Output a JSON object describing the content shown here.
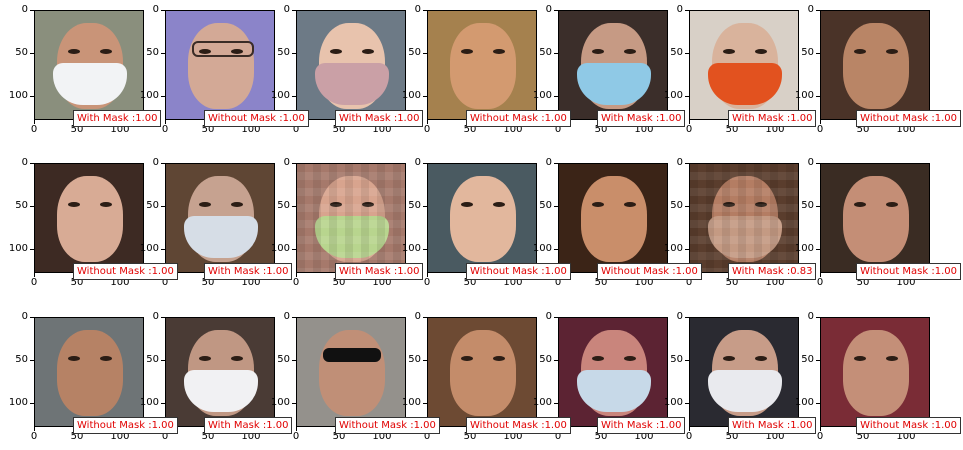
{
  "axis": {
    "y_ticks": [
      "0",
      "50",
      "100"
    ],
    "x_ticks": [
      "0",
      "50",
      "100"
    ]
  },
  "cells": [
    {
      "label": "With Mask :1.00",
      "skin": "#c99478",
      "bg": "#8a8f7d",
      "mask": "#f2f3f5",
      "kind": "mask"
    },
    {
      "label": "Without Mask :1.00",
      "skin": "#d3a996",
      "bg": "#8b84c9",
      "mask": "",
      "kind": "glasses-light"
    },
    {
      "label": "With Mask :1.00",
      "skin": "#e8c3ad",
      "bg": "#6d7a86",
      "mask": "#caa0a6",
      "kind": "mask"
    },
    {
      "label": "Without Mask :1.00",
      "skin": "#d39a70",
      "bg": "#a5814e",
      "mask": "",
      "kind": "face"
    },
    {
      "label": "With Mask :1.00",
      "skin": "#c69a84",
      "bg": "#3b2e2a",
      "mask": "#8fc9e6",
      "kind": "mask"
    },
    {
      "label": "With Mask :1.00",
      "skin": "#d9b39c",
      "bg": "#d8d0c7",
      "mask": "#e2521f",
      "kind": "mask"
    },
    {
      "label": "Without Mask :1.00",
      "skin": "#b98566",
      "bg": "#4a3328",
      "mask": "",
      "kind": "face"
    },
    {
      "label": "Without Mask :1.00",
      "skin": "#d8ab95",
      "bg": "#3d2a23",
      "mask": "",
      "kind": "face"
    },
    {
      "label": "With Mask :1.00",
      "skin": "#c6a290",
      "bg": "#5f4634",
      "mask": "#d6dde6",
      "kind": "mask"
    },
    {
      "label": "With Mask :1.00",
      "skin": "#d8a48e",
      "bg": "#a6796b",
      "mask": "#b8d58e",
      "kind": "pixel"
    },
    {
      "label": "Without Mask :1.00",
      "skin": "#e2b79d",
      "bg": "#4a5a61",
      "mask": "",
      "kind": "face"
    },
    {
      "label": "Without Mask :1.00",
      "skin": "#c98e6a",
      "bg": "#3b2417",
      "mask": "",
      "kind": "face"
    },
    {
      "label": "With Mask :0.83",
      "skin": "#b47d63",
      "bg": "#5a3d2d",
      "mask": "#c49a83",
      "kind": "pixel"
    },
    {
      "label": "Without Mask :1.00",
      "skin": "#c48e76",
      "bg": "#3a2c23",
      "mask": "",
      "kind": "face"
    },
    {
      "label": "Without Mask :1.00",
      "skin": "#b68265",
      "bg": "#6e7476",
      "mask": "",
      "kind": "face"
    },
    {
      "label": "With Mask :1.00",
      "skin": "#c09783",
      "bg": "#4a3b35",
      "mask": "#f1f1f3",
      "kind": "mask"
    },
    {
      "label": "Without Mask :1.00",
      "skin": "#c08f77",
      "bg": "#94918c",
      "mask": "",
      "kind": "glasses"
    },
    {
      "label": "Without Mask :1.00",
      "skin": "#c48c6a",
      "bg": "#6d4a33",
      "mask": "",
      "kind": "face"
    },
    {
      "label": "With Mask :1.00",
      "skin": "#c9857c",
      "bg": "#5c2333",
      "mask": "#c7d9e8",
      "kind": "mask"
    },
    {
      "label": "With Mask :1.00",
      "skin": "#c79c88",
      "bg": "#2a2a31",
      "mask": "#e9eaee",
      "kind": "mask"
    },
    {
      "label": "Without Mask :1.00",
      "skin": "#c48f78",
      "bg": "#7a2c36",
      "mask": "",
      "kind": "face"
    }
  ]
}
